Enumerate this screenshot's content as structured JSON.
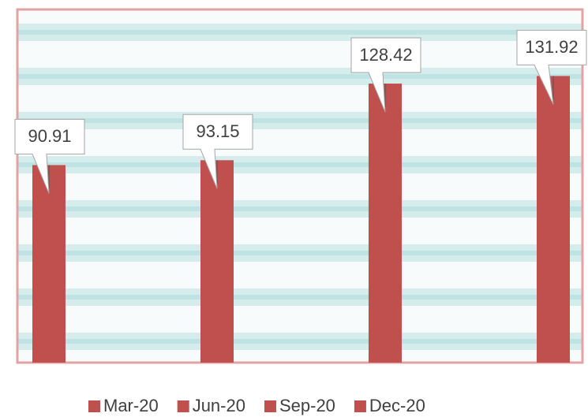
{
  "chart_data": {
    "type": "bar",
    "categories": [
      "Mar-20",
      "Jun-20",
      "Sep-20",
      "Dec-20"
    ],
    "values": [
      90.91,
      93.15,
      128.42,
      131.92
    ],
    "color": "#c0504d",
    "ylim": [
      0,
      160
    ],
    "legend": "bottom"
  }
}
